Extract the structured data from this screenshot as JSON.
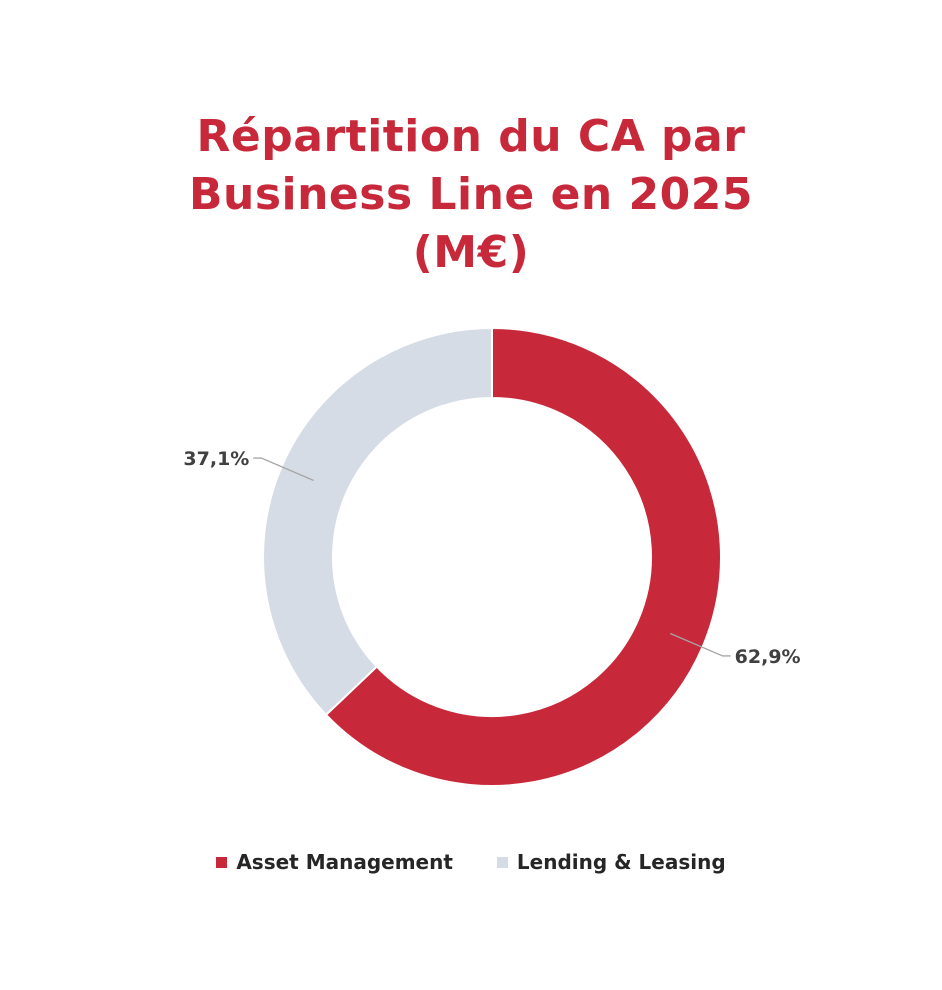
{
  "chart_data": {
    "type": "pie",
    "variant": "donut",
    "title_lines": [
      "Répartition du CA par",
      "Business Line en 2025",
      "(M€)"
    ],
    "categories": [
      "Asset Management",
      "Lending & Leasing"
    ],
    "values": [
      62.9,
      37.1
    ],
    "data_labels": [
      "62,9%",
      "37,1%"
    ],
    "colors": [
      "#C8293A",
      "#D6DCE5"
    ],
    "legend_position": "bottom"
  }
}
